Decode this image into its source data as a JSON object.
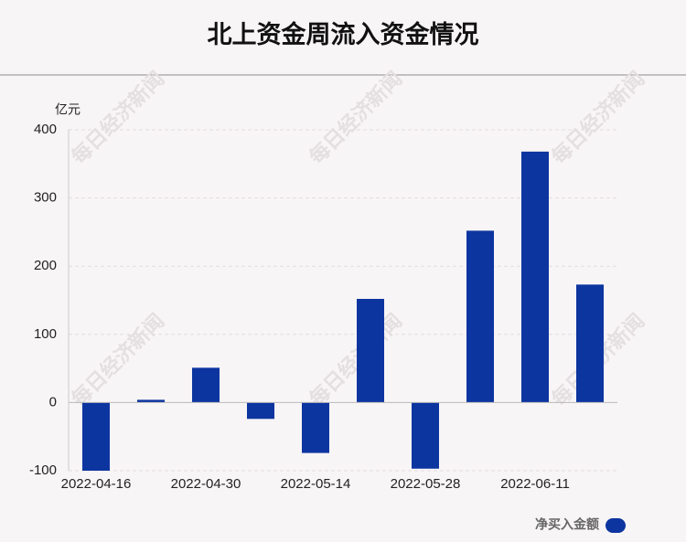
{
  "chart_data": {
    "type": "bar",
    "title": "北上资金周流入资金情况",
    "y_unit": "亿元",
    "watermark": "每日经济新闻",
    "categories": [
      "2022-04-16",
      null,
      "2022-04-30",
      null,
      "2022-05-14",
      null,
      "2022-05-28",
      null,
      "2022-06-11",
      null
    ],
    "series": [
      {
        "name": "净买入金额",
        "color": "#0d35a0",
        "values": [
          -100,
          4,
          51,
          -24,
          -74,
          152,
          -97,
          252,
          368,
          173
        ]
      }
    ],
    "ylim": [
      -100,
      400
    ],
    "yticks": [
      -100,
      0,
      100,
      200,
      300,
      400
    ],
    "grid": true
  }
}
